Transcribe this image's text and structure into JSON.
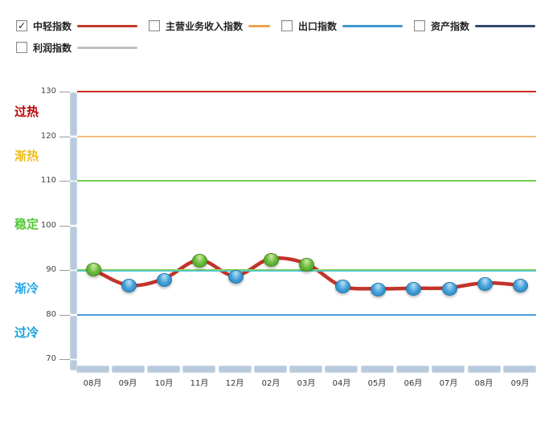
{
  "legend": {
    "items": [
      {
        "label": "中轻指数",
        "checked": true,
        "color": "#c0392b"
      },
      {
        "label": "主营业务收入指数",
        "checked": false,
        "color": "#eda24d"
      },
      {
        "label": "出口指数",
        "checked": false,
        "color": "#3e96d0"
      },
      {
        "label": "资产指数",
        "checked": false,
        "color": "#33496e"
      },
      {
        "label": "利润指数",
        "checked": false,
        "color": "#c2c2c2"
      }
    ],
    "checkmark": "✓"
  },
  "chart_data": {
    "type": "line",
    "x": [
      "08月",
      "09月",
      "10月",
      "11月",
      "12月",
      "02月",
      "03月",
      "04月",
      "05月",
      "06月",
      "07月",
      "08月",
      "09月"
    ],
    "series": [
      {
        "name": "中轻指数",
        "color": "#c2342b",
        "values": [
          90.2,
          86.6,
          88.0,
          92.2,
          88.7,
          92.5,
          91.4,
          86.4,
          85.8,
          85.9,
          86.0,
          87.1,
          86.6
        ],
        "marker_colors": [
          "green",
          "blue",
          "blue",
          "green",
          "blue",
          "green",
          "green",
          "blue",
          "blue",
          "blue",
          "blue",
          "blue",
          "blue"
        ]
      }
    ],
    "ylim": [
      70,
      130
    ],
    "y_ticks": [
      130,
      120,
      110,
      100,
      90,
      80,
      70
    ],
    "grid": "horizontal-threshold-lines",
    "legend_position": "top",
    "gridlines": [
      {
        "value": 130,
        "color": "#cd2a1e"
      },
      {
        "value": 120,
        "color": "#f6be7e"
      },
      {
        "value": 110,
        "color": "#6fce4e"
      },
      {
        "value": 90,
        "color": "#3ec8d8",
        "color2": "#8fcf5d"
      },
      {
        "value": 80,
        "color": "#4d9adb"
      }
    ],
    "zones": [
      {
        "label": "过热",
        "color": "#c00000",
        "at": 125.9
      },
      {
        "label": "渐热",
        "color": "#eebe19",
        "at": 115.9
      },
      {
        "label": "稳定",
        "color": "#52c833",
        "at": 100.6
      },
      {
        "label": "渐冷",
        "color": "#2ea6e9",
        "at": 86.2
      },
      {
        "label": "过冷",
        "color": "#13a1db",
        "at": 76.3
      }
    ],
    "marker_styles": {
      "green": {
        "fill": "#63b637",
        "light": "#cdeca4",
        "dark": "#4e9a26",
        "rim": "#4a8c1e"
      },
      "blue": {
        "fill": "#3e9bd5",
        "light": "#b6e1f8",
        "dark": "#2f86bb",
        "rim": "#2678ac"
      }
    }
  }
}
